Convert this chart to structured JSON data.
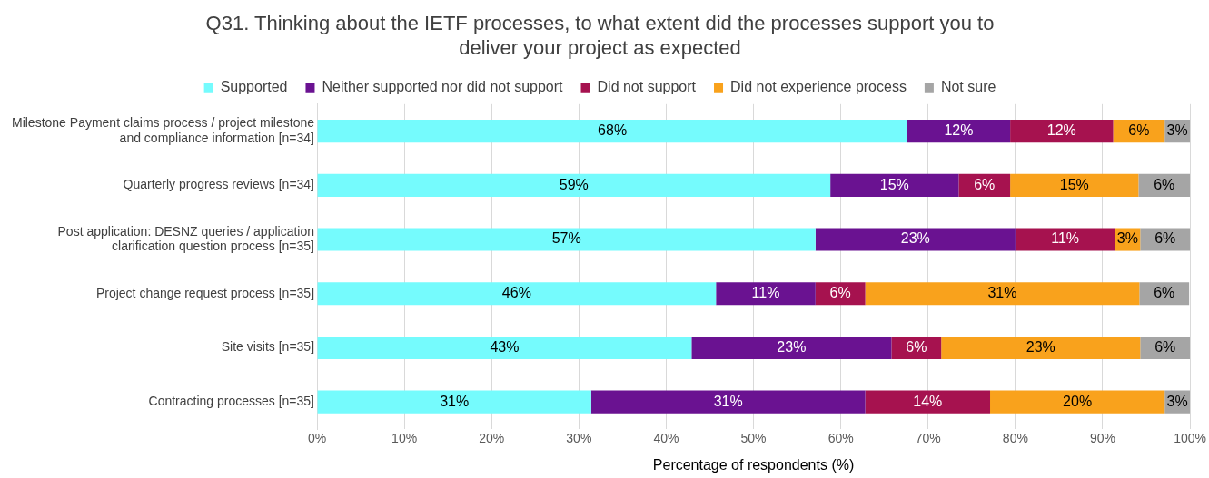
{
  "chart_data": {
    "type": "bar",
    "orientation": "horizontal",
    "stacked": true,
    "title": "Q31. Thinking about the IETF processes, to what extent did the processes support you to deliver your project as expected",
    "xlabel": "Percentage of respondents (%)",
    "categories": [
      "Milestone Payment claims process / project milestone and compliance information [n=34]",
      "Quarterly progress reviews [n=34]",
      "Post application: DESNZ queries / application clarification question process [n=35]",
      "Project change request process [n=35]",
      "Site visits [n=35]",
      "Contracting processes [n=35]"
    ],
    "series": [
      {
        "name": "Supported",
        "color": "#75fbfd",
        "values": [
          67.6,
          58.8,
          57.1,
          45.7,
          42.9,
          31.4
        ],
        "value_labels": [
          "68%",
          "59%",
          "57%",
          "46%",
          "43%",
          "31%"
        ]
      },
      {
        "name": "Neither supported nor did not support",
        "color": "#6a1291",
        "values": [
          11.8,
          14.7,
          22.9,
          11.4,
          22.9,
          31.4
        ],
        "value_labels": [
          "12%",
          "15%",
          "23%",
          "11%",
          "23%",
          "31%"
        ]
      },
      {
        "name": "Did not support",
        "color": "#a6124f",
        "values": [
          11.8,
          5.9,
          11.4,
          5.7,
          5.7,
          14.3
        ],
        "value_labels": [
          "12%",
          "6%",
          "11%",
          "6%",
          "6%",
          "14%"
        ]
      },
      {
        "name": "Did not experience process",
        "color": "#f9a21c",
        "values": [
          5.9,
          14.7,
          2.9,
          31.4,
          22.8,
          20.0
        ],
        "value_labels": [
          "6%",
          "15%",
          "3%",
          "31%",
          "23%",
          "20%"
        ]
      },
      {
        "name": "Not sure",
        "color": "#a5a5a5",
        "values": [
          2.9,
          5.9,
          5.7,
          5.7,
          5.7,
          2.9
        ],
        "value_labels": [
          "3%",
          "6%",
          "6%",
          "6%",
          "6%",
          "3%"
        ]
      }
    ],
    "xlim": [
      0,
      100
    ],
    "xticks": [
      {
        "value": 0,
        "label": "0%"
      },
      {
        "value": 10,
        "label": "10%"
      },
      {
        "value": 20,
        "label": "20%"
      },
      {
        "value": 30,
        "label": "30%"
      },
      {
        "value": 40,
        "label": "40%"
      },
      {
        "value": 50,
        "label": "50%"
      },
      {
        "value": 60,
        "label": "60%"
      },
      {
        "value": 70,
        "label": "70%"
      },
      {
        "value": 80,
        "label": "80%"
      },
      {
        "value": 90,
        "label": "90%"
      },
      {
        "value": 100,
        "label": "100%"
      }
    ],
    "grid": "x",
    "legend": "top"
  }
}
